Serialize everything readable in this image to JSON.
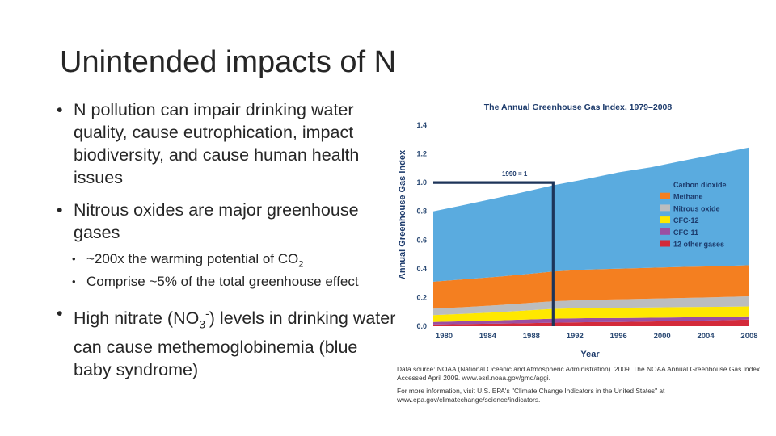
{
  "slide": {
    "title": "Unintended impacts of N",
    "bullets": {
      "b1": "N pollution can impair drinking water quality, cause eutrophication, impact biodiversity, and cause human health issues",
      "b2": "Nitrous oxides are major greenhouse gases",
      "b2_sub1_pre": "~200x the warming potential of CO",
      "b2_sub1_sub": "2",
      "b2_sub2": "Comprise ~5% of the total greenhouse effect",
      "b3_pre": "High nitrate (NO",
      "b3_sub": "3",
      "b3_sup": "-",
      "b3_post": ") levels in drinking water can cause methemoglobinemia (blue baby syndrome)"
    }
  },
  "chart_data": {
    "type": "area",
    "stacked": true,
    "title": "The Annual Greenhouse Gas Index, 1979–2008",
    "xlabel": "Year",
    "ylabel": "Annual Greenhouse Gas Index",
    "xlim": [
      1979,
      2008
    ],
    "ylim": [
      0,
      1.4
    ],
    "x_ticks": [
      "1980",
      "1984",
      "1988",
      "1992",
      "1996",
      "2000",
      "2004",
      "2008"
    ],
    "y_ticks": [
      "0.0",
      "0.2",
      "0.4",
      "0.6",
      "0.8",
      "1.0",
      "1.2",
      "1.4"
    ],
    "annotation": "1990 = 1",
    "reference": {
      "x": 1990,
      "y": 1.0
    },
    "x": [
      1979,
      1982,
      1985,
      1988,
      1990,
      1993,
      1996,
      1999,
      2002,
      2005,
      2008
    ],
    "series": [
      {
        "name": "12 other gases",
        "color": "#d42a3a",
        "values": [
          0.012,
          0.015,
          0.018,
          0.022,
          0.025,
          0.028,
          0.03,
          0.033,
          0.037,
          0.041,
          0.046
        ]
      },
      {
        "name": "CFC-11",
        "color": "#9b4fa2",
        "values": [
          0.018,
          0.02,
          0.023,
          0.026,
          0.028,
          0.028,
          0.027,
          0.026,
          0.025,
          0.024,
          0.023
        ]
      },
      {
        "name": "CFC-12",
        "color": "#ffe800",
        "values": [
          0.047,
          0.052,
          0.057,
          0.064,
          0.068,
          0.071,
          0.072,
          0.072,
          0.071,
          0.07,
          0.069
        ]
      },
      {
        "name": "Nitrous oxide",
        "color": "#bbbdbf",
        "values": [
          0.045,
          0.047,
          0.049,
          0.051,
          0.053,
          0.056,
          0.058,
          0.061,
          0.064,
          0.067,
          0.07
        ]
      },
      {
        "name": "Methane",
        "color": "#f47f20",
        "values": [
          0.188,
          0.193,
          0.198,
          0.203,
          0.207,
          0.211,
          0.214,
          0.215,
          0.216,
          0.216,
          0.217
        ]
      },
      {
        "name": "Carbon dioxide",
        "color": "#5aabdf",
        "values": [
          0.49,
          0.52,
          0.55,
          0.58,
          0.6,
          0.63,
          0.67,
          0.7,
          0.74,
          0.78,
          0.82
        ]
      }
    ],
    "legend_order": [
      "Carbon dioxide",
      "Methane",
      "Nitrous oxide",
      "CFC-12",
      "CFC-11",
      "12 other gases"
    ],
    "legend_placement": "inside right",
    "colors": {
      "title": "#1c3a6b",
      "axis_text": "#2b4a74",
      "ref_line": "#1d3459"
    },
    "source_line1": "Data source: NOAA (National Oceanic and Atmospheric Administration). 2009. The NOAA Annual Greenhouse Gas Index. Accessed April 2009. www.esrl.noaa.gov/gmd/aggi.",
    "source_line2": "For more information, visit U.S. EPA's \"Climate Change Indicators in the United States\" at www.epa.gov/climatechange/science/indicators."
  }
}
